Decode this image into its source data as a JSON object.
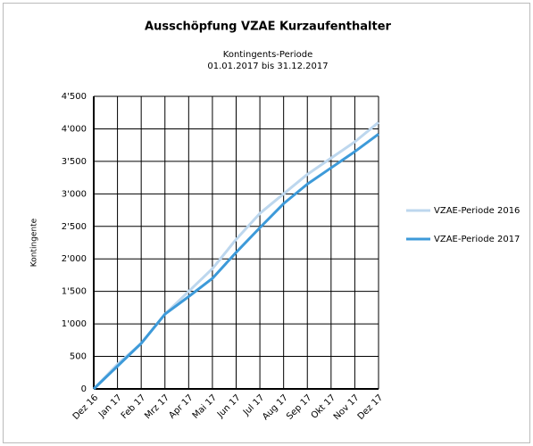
{
  "chart_data": {
    "type": "line",
    "title": "Ausschöpfung VZAE Kurzaufenthalter",
    "subtitle": [
      "Kontingents-Periode",
      "01.01.2017 bis 31.12.2017"
    ],
    "y_label": "Kontingente",
    "categories": [
      "Dez 16",
      "Jan 17",
      "Feb 17",
      "Mrz 17",
      "Apr 17",
      "Mai 17",
      "Jun 17",
      "Jul 17",
      "Aug 17",
      "Sep 17",
      "Okt 17",
      "Nov 17",
      "Dez 17"
    ],
    "series": [
      {
        "name": "VZAE-Periode 2016",
        "color": "#bdd7ee",
        "values": [
          0,
          380,
          700,
          1150,
          1500,
          1850,
          2300,
          2700,
          3000,
          3300,
          3550,
          3800,
          4100
        ]
      },
      {
        "name": "VZAE-Periode 2017",
        "color": "#3d9ad9",
        "values": [
          0,
          350,
          700,
          1150,
          1420,
          1700,
          2100,
          2480,
          2850,
          3150,
          3400,
          3650,
          3920
        ]
      }
    ],
    "ylim": [
      0,
      4500
    ],
    "yticks": [
      0,
      500,
      {
        "value": 1000,
        "label": "1'000"
      },
      {
        "value": 1500,
        "label": "1'500"
      },
      {
        "value": 2000,
        "label": "2'000"
      },
      {
        "value": 2500,
        "label": "2'500"
      },
      {
        "value": 3000,
        "label": "3'000"
      },
      {
        "value": 3500,
        "label": "3'500"
      },
      {
        "value": 4000,
        "label": "4'000"
      },
      {
        "value": 4500,
        "label": "4'500"
      }
    ],
    "grid": true,
    "legend": "right"
  }
}
